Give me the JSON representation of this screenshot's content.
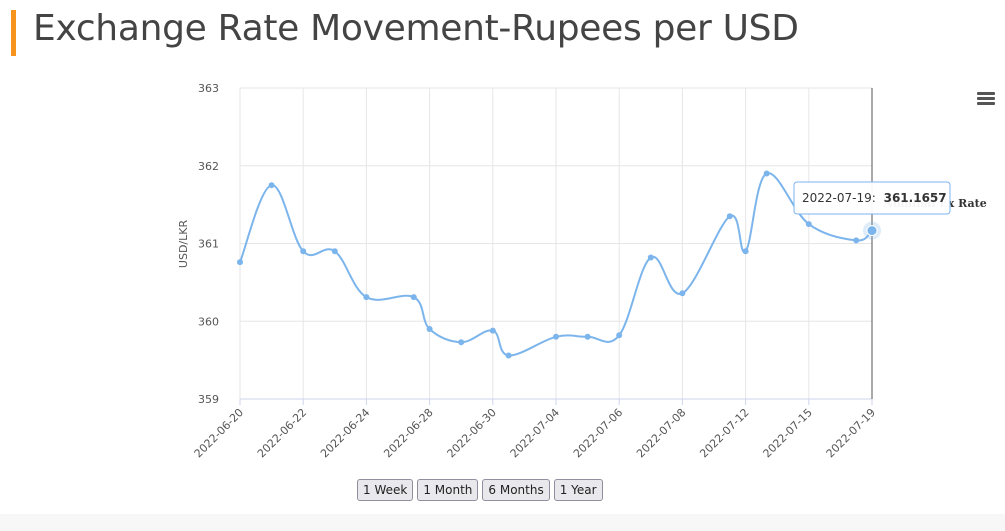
{
  "page": {
    "title": "Exchange Rate Movement-Rupees per USD"
  },
  "colors": {
    "accent": "#f7941d",
    "series": "#7cb5ec",
    "grid": "#e6e6e6",
    "axis_text": "#555555"
  },
  "menu": {
    "icon": "hamburger-menu-icon"
  },
  "range_buttons": [
    "1 Week",
    "1 Month",
    "6 Months",
    "1 Year"
  ],
  "chart_data": {
    "type": "line",
    "ylabel": "USD/LKR",
    "ylim": [
      359,
      363
    ],
    "yticks": [
      359,
      360,
      361,
      362,
      363
    ],
    "xticks": [
      "2022-06-20",
      "2022-06-22",
      "2022-06-24",
      "2022-06-28",
      "2022-06-30",
      "2022-07-04",
      "2022-07-06",
      "2022-07-08",
      "2022-07-12",
      "2022-07-15",
      "2022-07-19"
    ],
    "grid": true,
    "series": [
      {
        "name": "Nominal Ex Rate",
        "x": [
          "2022-06-20",
          "2022-06-21",
          "2022-06-22",
          "2022-06-23",
          "2022-06-24",
          "2022-06-27",
          "2022-06-28",
          "2022-06-29",
          "2022-06-30",
          "2022-07-01",
          "2022-07-04",
          "2022-07-05",
          "2022-07-06",
          "2022-07-07",
          "2022-07-08",
          "2022-07-11",
          "2022-07-12",
          "2022-07-13",
          "2022-07-15",
          "2022-07-18",
          "2022-07-19"
        ],
        "values": [
          360.76,
          361.75,
          360.9,
          360.9,
          360.31,
          360.31,
          359.9,
          359.73,
          359.88,
          359.56,
          359.8,
          359.8,
          359.82,
          360.82,
          360.36,
          361.35,
          360.9,
          361.9,
          361.25,
          361.04,
          361.1657
        ]
      }
    ],
    "tooltip": {
      "date": "2022-07-19:",
      "value": "361.1657",
      "series_label": "Nominal Ex Rate"
    }
  }
}
